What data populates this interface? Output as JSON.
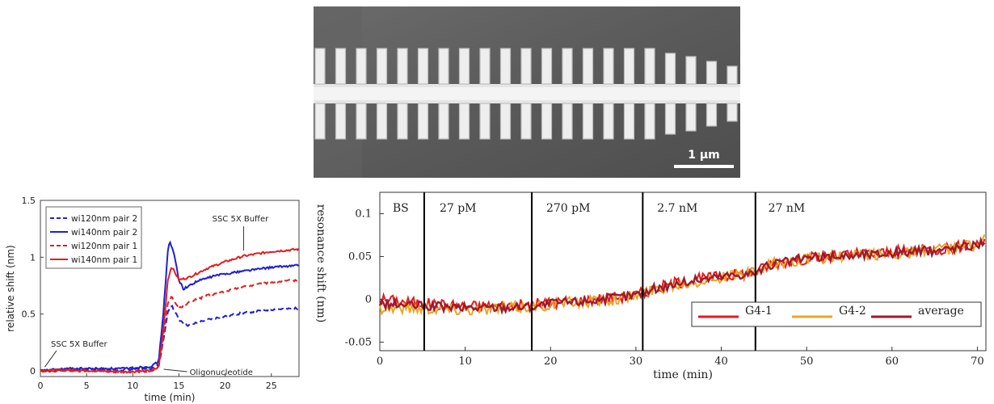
{
  "sem_image": {
    "scale_bar_label": "1 µm"
  },
  "chart_data": [
    {
      "type": "line",
      "xlabel": "time (min)",
      "ylabel": "relative shift (nm)",
      "xlim": [
        0,
        28
      ],
      "ylim": [
        -0.05,
        1.5
      ],
      "xticks": [
        0,
        5,
        10,
        15,
        20,
        25
      ],
      "yticks": [
        0,
        0.5,
        1,
        1.5
      ],
      "grid": false,
      "legend_position": "top-left",
      "series": [
        {
          "name": "wi120nm pair 2",
          "color": "#1f1fd6",
          "style": "dashed",
          "x": [
            0,
            3,
            6,
            9,
            12,
            12.8,
            13.3,
            13.8,
            14.2,
            15,
            16,
            18,
            20,
            22,
            25,
            28
          ],
          "y": [
            0,
            0.01,
            0.01,
            0.01,
            0.02,
            0.05,
            0.25,
            0.52,
            0.58,
            0.45,
            0.4,
            0.45,
            0.48,
            0.51,
            0.54,
            0.55
          ]
        },
        {
          "name": "wi140nm pair 2",
          "color": "#1f1fd6",
          "style": "solid",
          "x": [
            0,
            3,
            6,
            9,
            12,
            12.8,
            13.3,
            13.8,
            14,
            14.5,
            15,
            15.5,
            17,
            19,
            22,
            25,
            28
          ],
          "y": [
            0,
            0.02,
            0.02,
            0.02,
            0.04,
            0.08,
            0.5,
            1.05,
            1.14,
            1.02,
            0.8,
            0.72,
            0.79,
            0.84,
            0.88,
            0.91,
            0.93
          ]
        },
        {
          "name": "wi120nm pair 1",
          "color": "#e02020",
          "style": "dashed",
          "x": [
            0,
            3,
            6,
            9,
            12,
            12.8,
            13.3,
            13.8,
            14.2,
            15,
            16,
            18,
            20,
            22,
            25,
            28
          ],
          "y": [
            0,
            0.0,
            0.0,
            -0.01,
            0.0,
            0.03,
            0.3,
            0.6,
            0.65,
            0.55,
            0.6,
            0.66,
            0.7,
            0.74,
            0.78,
            0.8
          ]
        },
        {
          "name": "wi140nm pair 1",
          "color": "#e02020",
          "style": "solid",
          "x": [
            0,
            3,
            6,
            9,
            12,
            12.8,
            13.3,
            13.8,
            14.2,
            15,
            16,
            18,
            20,
            22,
            25,
            28
          ],
          "y": [
            0,
            0.01,
            0.0,
            -0.01,
            0.0,
            0.03,
            0.35,
            0.8,
            0.92,
            0.8,
            0.82,
            0.9,
            0.96,
            1.01,
            1.05,
            1.07
          ]
        }
      ],
      "annotations": [
        {
          "text": "SSC 5X Buffer",
          "x": 0.3,
          "y": 0.02
        },
        {
          "text": "Oligonucleotide",
          "x": 13,
          "y": 0
        },
        {
          "text": "SSC 5X Buffer",
          "x": 22,
          "y": 1.03
        }
      ]
    },
    {
      "type": "line",
      "xlabel": "time (min)",
      "ylabel": "resonance shift (nm)",
      "xlim": [
        0,
        71
      ],
      "ylim": [
        -0.06,
        0.125
      ],
      "xticks": [
        0,
        10,
        20,
        30,
        40,
        50,
        60,
        70
      ],
      "yticks": [
        -0.05,
        0,
        0.05,
        0.1
      ],
      "grid": false,
      "legend_position": "bottom-right",
      "phase_lines_x": [
        5.2,
        17.8,
        30.8,
        44
      ],
      "phase_labels": [
        {
          "text": "BS",
          "x": 1.5
        },
        {
          "text": "27 pM",
          "x": 7
        },
        {
          "text": "270 pM",
          "x": 19.5
        },
        {
          "text": "2.7 nM",
          "x": 32.5
        },
        {
          "text": "27 nM",
          "x": 45.5
        }
      ],
      "series": [
        {
          "name": "G4-1",
          "color": "#e8191c",
          "x": [
            0,
            5,
            10,
            15,
            18,
            20,
            25,
            30,
            32,
            35,
            40,
            44,
            46,
            50,
            55,
            60,
            65,
            70,
            71
          ],
          "y": [
            0,
            -0.005,
            -0.008,
            -0.008,
            -0.006,
            -0.004,
            0.0,
            0.005,
            0.012,
            0.02,
            0.027,
            0.032,
            0.042,
            0.048,
            0.052,
            0.055,
            0.058,
            0.065,
            0.07
          ]
        },
        {
          "name": "G4-2",
          "color": "#e8a628",
          "x": [
            0,
            5,
            10,
            15,
            18,
            20,
            25,
            30,
            32,
            35,
            40,
            44,
            46,
            50,
            55,
            60,
            65,
            70,
            71
          ],
          "y": [
            -0.01,
            -0.01,
            -0.012,
            -0.01,
            -0.009,
            -0.006,
            -0.002,
            0.004,
            0.011,
            0.018,
            0.026,
            0.031,
            0.041,
            0.047,
            0.05,
            0.053,
            0.057,
            0.064,
            0.071
          ]
        },
        {
          "name": "average",
          "color": "#9e1a2c",
          "x": [
            0,
            5,
            10,
            15,
            18,
            20,
            25,
            30,
            32,
            35,
            40,
            44,
            46,
            50,
            55,
            60,
            65,
            70,
            71
          ],
          "y": [
            -0.005,
            -0.008,
            -0.01,
            -0.009,
            -0.008,
            -0.005,
            -0.001,
            0.005,
            0.012,
            0.019,
            0.027,
            0.031,
            0.041,
            0.048,
            0.051,
            0.054,
            0.057,
            0.064,
            0.07
          ]
        }
      ]
    }
  ]
}
